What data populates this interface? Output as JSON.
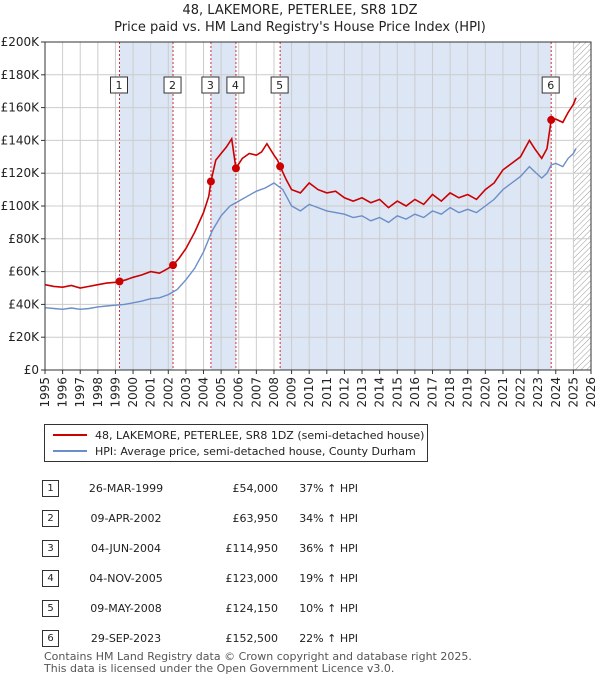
{
  "title": {
    "line1": "48, LAKEMORE, PETERLEE, SR8 1DZ",
    "line2": "Price paid vs. HM Land Registry's House Price Index (HPI)"
  },
  "colors": {
    "property": "#cc0000",
    "hpi": "#6a8ec8",
    "shade": "#dde6f5",
    "grid": "#cccccc",
    "marker": "#cc0000"
  },
  "legend": {
    "property": "48, LAKEMORE, PETERLEE, SR8 1DZ (semi-detached house)",
    "hpi": "HPI: Average price, semi-detached house, County Durham"
  },
  "sales": [
    {
      "num": "1",
      "date": "26-MAR-1999",
      "price": "£54,000",
      "hpi": "37% ↑ HPI"
    },
    {
      "num": "2",
      "date": "09-APR-2002",
      "price": "£63,950",
      "hpi": "34% ↑ HPI"
    },
    {
      "num": "3",
      "date": "04-JUN-2004",
      "price": "£114,950",
      "hpi": "36% ↑ HPI"
    },
    {
      "num": "4",
      "date": "04-NOV-2005",
      "price": "£123,000",
      "hpi": "19% ↑ HPI"
    },
    {
      "num": "5",
      "date": "09-MAY-2008",
      "price": "£124,150",
      "hpi": "10% ↑ HPI"
    },
    {
      "num": "6",
      "date": "29-SEP-2023",
      "price": "£152,500",
      "hpi": "22% ↑ HPI"
    }
  ],
  "footer": {
    "line1": "Contains HM Land Registry data © Crown copyright and database right 2025.",
    "line2": "This data is licensed under the Open Government Licence v3.0."
  },
  "chart_data": {
    "type": "line",
    "xlim": [
      1995,
      2026
    ],
    "ylim": [
      0,
      200000
    ],
    "x_ticks": [
      "1995",
      "1996",
      "1997",
      "1998",
      "1999",
      "2000",
      "2001",
      "2002",
      "2003",
      "2004",
      "2005",
      "2006",
      "2007",
      "2008",
      "2009",
      "2010",
      "2011",
      "2012",
      "2013",
      "2014",
      "2015",
      "2016",
      "2017",
      "2018",
      "2019",
      "2020",
      "2021",
      "2022",
      "2023",
      "2024",
      "2025",
      "2026"
    ],
    "y_ticks": [
      {
        "v": 0,
        "label": "£0"
      },
      {
        "v": 20000,
        "label": "£20K"
      },
      {
        "v": 40000,
        "label": "£40K"
      },
      {
        "v": 60000,
        "label": "£60K"
      },
      {
        "v": 80000,
        "label": "£80K"
      },
      {
        "v": 100000,
        "label": "£100K"
      },
      {
        "v": 120000,
        "label": "£120K"
      },
      {
        "v": 140000,
        "label": "£140K"
      },
      {
        "v": 160000,
        "label": "£160K"
      },
      {
        "v": 180000,
        "label": "£180K"
      },
      {
        "v": 200000,
        "label": "£200K"
      }
    ],
    "grid": true,
    "forecast_hatch_from": 2025.0,
    "shaded_periods": [
      [
        1999.23,
        2002.27
      ],
      [
        2004.42,
        2005.84
      ],
      [
        2008.35,
        2023.74
      ]
    ],
    "series": [
      {
        "name": "48, LAKEMORE, PETERLEE, SR8 1DZ (semi-detached house)",
        "key": "property",
        "points": [
          [
            1995.0,
            52000
          ],
          [
            1995.5,
            51000
          ],
          [
            1996.0,
            50500
          ],
          [
            1996.5,
            51500
          ],
          [
            1997.0,
            50000
          ],
          [
            1997.5,
            51000
          ],
          [
            1998.0,
            52000
          ],
          [
            1998.5,
            53000
          ],
          [
            1999.0,
            53500
          ],
          [
            1999.23,
            54000
          ],
          [
            1999.6,
            55000
          ],
          [
            2000.0,
            56500
          ],
          [
            2000.5,
            58000
          ],
          [
            2001.0,
            60000
          ],
          [
            2001.5,
            59000
          ],
          [
            2002.0,
            62000
          ],
          [
            2002.27,
            63950
          ],
          [
            2002.6,
            68000
          ],
          [
            2003.0,
            74000
          ],
          [
            2003.5,
            84000
          ],
          [
            2004.0,
            96000
          ],
          [
            2004.3,
            106000
          ],
          [
            2004.42,
            114950
          ],
          [
            2004.7,
            128000
          ],
          [
            2005.0,
            132000
          ],
          [
            2005.3,
            136000
          ],
          [
            2005.6,
            141000
          ],
          [
            2005.84,
            123000
          ],
          [
            2006.2,
            129000
          ],
          [
            2006.6,
            132000
          ],
          [
            2007.0,
            131000
          ],
          [
            2007.3,
            133000
          ],
          [
            2007.6,
            138000
          ],
          [
            2008.0,
            131000
          ],
          [
            2008.2,
            128000
          ],
          [
            2008.35,
            124150
          ],
          [
            2008.7,
            116000
          ],
          [
            2009.0,
            110000
          ],
          [
            2009.5,
            108000
          ],
          [
            2010.0,
            114000
          ],
          [
            2010.5,
            110000
          ],
          [
            2011.0,
            108000
          ],
          [
            2011.5,
            109000
          ],
          [
            2012.0,
            105000
          ],
          [
            2012.5,
            103000
          ],
          [
            2013.0,
            105000
          ],
          [
            2013.5,
            102000
          ],
          [
            2014.0,
            104000
          ],
          [
            2014.5,
            99000
          ],
          [
            2015.0,
            103000
          ],
          [
            2015.5,
            100000
          ],
          [
            2016.0,
            104000
          ],
          [
            2016.5,
            101000
          ],
          [
            2017.0,
            107000
          ],
          [
            2017.5,
            103000
          ],
          [
            2018.0,
            108000
          ],
          [
            2018.5,
            105000
          ],
          [
            2019.0,
            107000
          ],
          [
            2019.5,
            104000
          ],
          [
            2020.0,
            110000
          ],
          [
            2020.5,
            114000
          ],
          [
            2021.0,
            122000
          ],
          [
            2021.5,
            126000
          ],
          [
            2022.0,
            130000
          ],
          [
            2022.5,
            140000
          ],
          [
            2022.8,
            135000
          ],
          [
            2023.2,
            129000
          ],
          [
            2023.5,
            135000
          ],
          [
            2023.74,
            152500
          ],
          [
            2024.0,
            153000
          ],
          [
            2024.4,
            151000
          ],
          [
            2024.7,
            157000
          ],
          [
            2025.0,
            162000
          ],
          [
            2025.15,
            166000
          ]
        ]
      },
      {
        "name": "HPI: Average price, semi-detached house, County Durham",
        "key": "hpi",
        "points": [
          [
            1995.0,
            38000
          ],
          [
            1995.5,
            37500
          ],
          [
            1996.0,
            37000
          ],
          [
            1996.5,
            37800
          ],
          [
            1997.0,
            37000
          ],
          [
            1997.5,
            37500
          ],
          [
            1998.0,
            38500
          ],
          [
            1998.5,
            39000
          ],
          [
            1999.0,
            39500
          ],
          [
            1999.5,
            40000
          ],
          [
            2000.0,
            41000
          ],
          [
            2000.5,
            42000
          ],
          [
            2001.0,
            43500
          ],
          [
            2001.5,
            44000
          ],
          [
            2002.0,
            46000
          ],
          [
            2002.5,
            49000
          ],
          [
            2003.0,
            55000
          ],
          [
            2003.5,
            62000
          ],
          [
            2004.0,
            72000
          ],
          [
            2004.5,
            85000
          ],
          [
            2005.0,
            94000
          ],
          [
            2005.5,
            100000
          ],
          [
            2006.0,
            103000
          ],
          [
            2006.5,
            106000
          ],
          [
            2007.0,
            109000
          ],
          [
            2007.5,
            111000
          ],
          [
            2008.0,
            114000
          ],
          [
            2008.5,
            110000
          ],
          [
            2009.0,
            100000
          ],
          [
            2009.5,
            97000
          ],
          [
            2010.0,
            101000
          ],
          [
            2010.5,
            99000
          ],
          [
            2011.0,
            97000
          ],
          [
            2011.5,
            96000
          ],
          [
            2012.0,
            95000
          ],
          [
            2012.5,
            93000
          ],
          [
            2013.0,
            94000
          ],
          [
            2013.5,
            91000
          ],
          [
            2014.0,
            93000
          ],
          [
            2014.5,
            90000
          ],
          [
            2015.0,
            94000
          ],
          [
            2015.5,
            92000
          ],
          [
            2016.0,
            95000
          ],
          [
            2016.5,
            93000
          ],
          [
            2017.0,
            97000
          ],
          [
            2017.5,
            95000
          ],
          [
            2018.0,
            99000
          ],
          [
            2018.5,
            96000
          ],
          [
            2019.0,
            98000
          ],
          [
            2019.5,
            96000
          ],
          [
            2020.0,
            100000
          ],
          [
            2020.5,
            104000
          ],
          [
            2021.0,
            110000
          ],
          [
            2021.5,
            114000
          ],
          [
            2022.0,
            118000
          ],
          [
            2022.5,
            124000
          ],
          [
            2022.8,
            121000
          ],
          [
            2023.2,
            117000
          ],
          [
            2023.5,
            120000
          ],
          [
            2023.74,
            125000
          ],
          [
            2024.0,
            126000
          ],
          [
            2024.4,
            124000
          ],
          [
            2024.7,
            129000
          ],
          [
            2025.0,
            132000
          ],
          [
            2025.15,
            135000
          ]
        ]
      }
    ],
    "markers": [
      {
        "label": "1",
        "x": 1999.23,
        "y": 54000
      },
      {
        "label": "2",
        "x": 2002.27,
        "y": 63950
      },
      {
        "label": "3",
        "x": 2004.42,
        "y": 114950
      },
      {
        "label": "4",
        "x": 2005.84,
        "y": 123000
      },
      {
        "label": "5",
        "x": 2008.35,
        "y": 124150
      },
      {
        "label": "6",
        "x": 2023.74,
        "y": 152500
      }
    ]
  }
}
